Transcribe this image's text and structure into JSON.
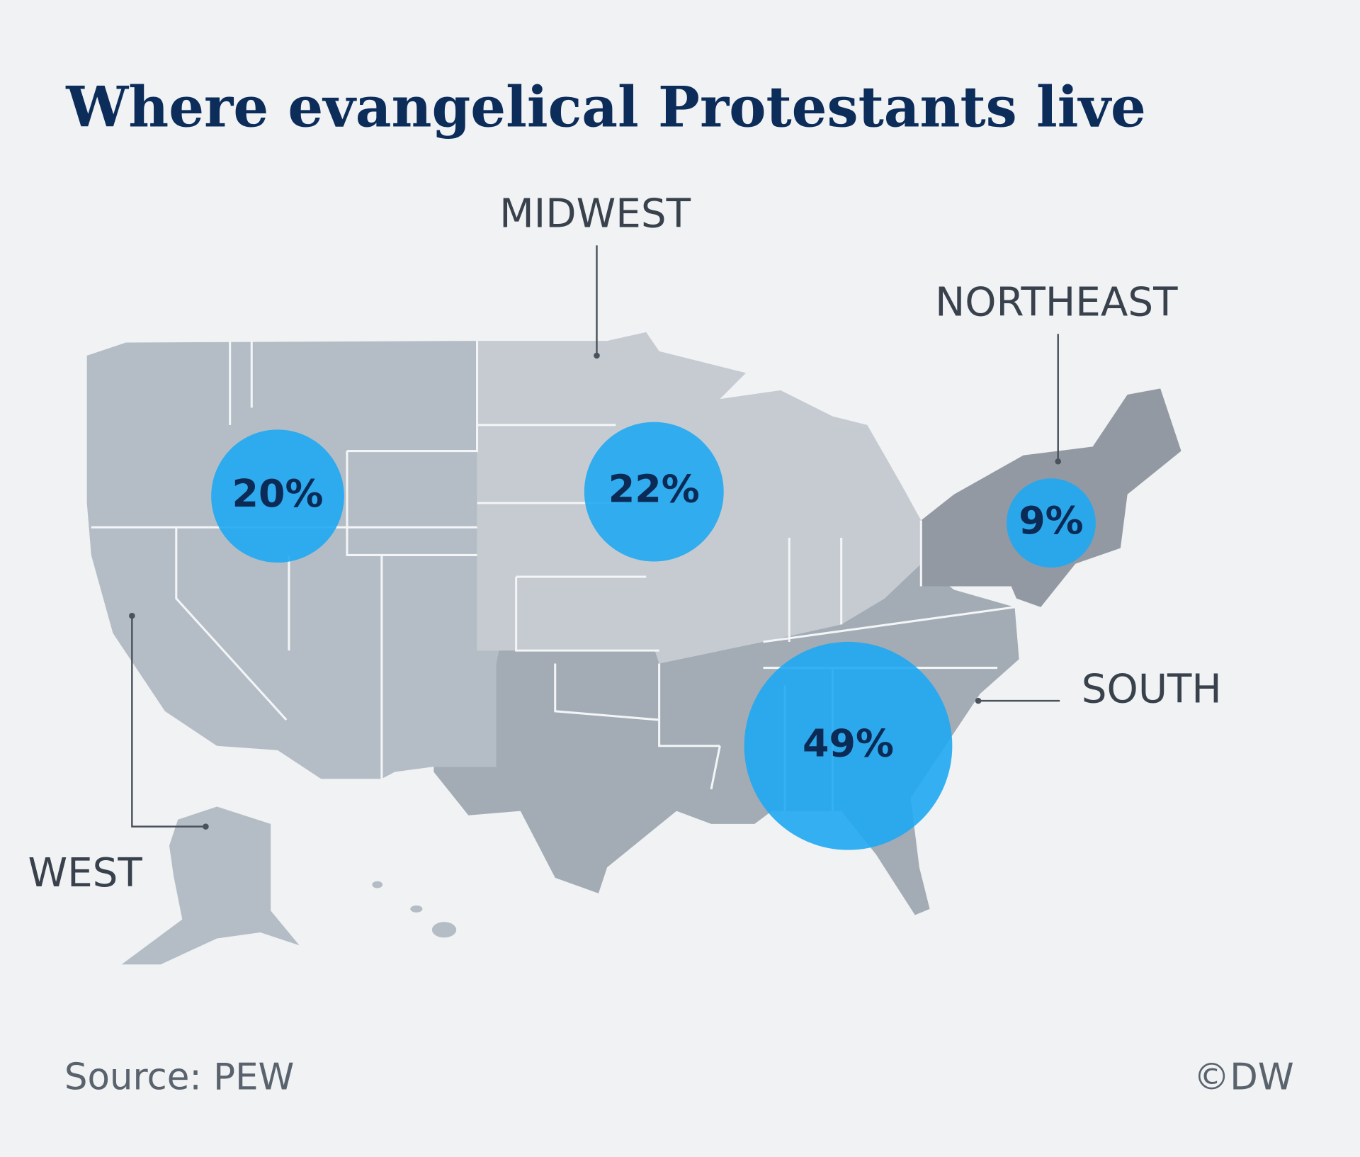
{
  "chart_data": {
    "type": "bubble-map",
    "title": "Where evangelical Protestants live",
    "categories": [
      "WEST",
      "MIDWEST",
      "NORTHEAST",
      "SOUTH"
    ],
    "values": [
      20,
      22,
      9,
      49
    ],
    "value_labels": [
      "20%",
      "22%",
      "9%",
      "49%"
    ],
    "color": "#1fa8f2",
    "source": "Source: PEW",
    "credit": "©DW"
  }
}
